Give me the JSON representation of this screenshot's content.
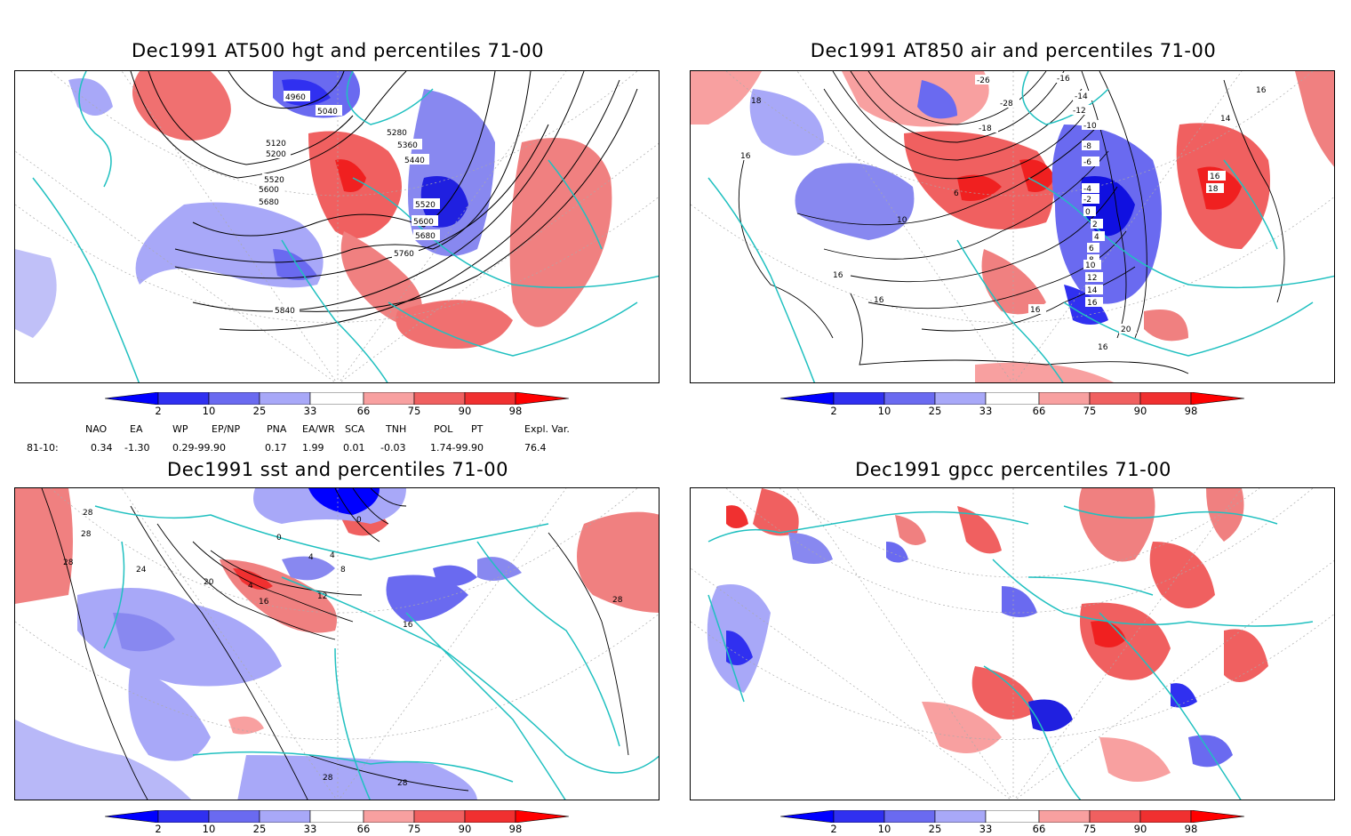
{
  "panels": {
    "p1": {
      "title": "Dec1991 AT500 hgt and percentiles 71-00",
      "contour_labels": [
        "4960",
        "5040",
        "5120",
        "5200",
        "5280",
        "5360",
        "5440",
        "5520",
        "5600",
        "5680",
        "5520",
        "5600",
        "5680",
        "5760",
        "5840"
      ]
    },
    "p2": {
      "title": "Dec1991 AT850 air and percentiles 71-00",
      "contour_labels": [
        "-26",
        "-28",
        "-18",
        "-16",
        "-14",
        "-12",
        "-10",
        "-8",
        "-6",
        "-4",
        "-2",
        "0",
        "2",
        "4",
        "6",
        "8",
        "10",
        "12",
        "14",
        "16",
        "20",
        "16",
        "16",
        "16",
        "18",
        "14",
        "16",
        "10",
        "6",
        "16",
        "16",
        "18",
        "16"
      ]
    },
    "p3": {
      "title": "Dec1991 sst and percentiles 71-00",
      "contour_labels": [
        "28",
        "28",
        "28",
        "24",
        "20",
        "16",
        "12",
        "8",
        "4",
        "4",
        "0",
        "4",
        "16",
        "28",
        "28",
        "28",
        "0"
      ]
    },
    "p4": {
      "title": "Dec1991 gpcc percentiles 71-00"
    }
  },
  "colorbar": {
    "ticks": [
      "2",
      "10",
      "25",
      "33",
      "66",
      "75",
      "90",
      "98"
    ],
    "colors": [
      "#0000ff",
      "#3030f0",
      "#6a6af0",
      "#a8a8f8",
      "#ffffff",
      "#f8a0a0",
      "#f06060",
      "#f03030",
      "#ff0000"
    ]
  },
  "indices": {
    "headers": [
      "NAO",
      "EA",
      "WP",
      "EP/NP",
      "PNA",
      "EA/WR",
      "SCA",
      "TNH",
      "POL",
      "PT",
      "Expl. Var."
    ],
    "row_label": "81-10:",
    "values": [
      "0.34",
      "-1.30",
      "0.29-99.90",
      "0.17",
      "1.99",
      "0.01",
      "-0.03",
      "1.74-99.90",
      "76.4"
    ]
  }
}
